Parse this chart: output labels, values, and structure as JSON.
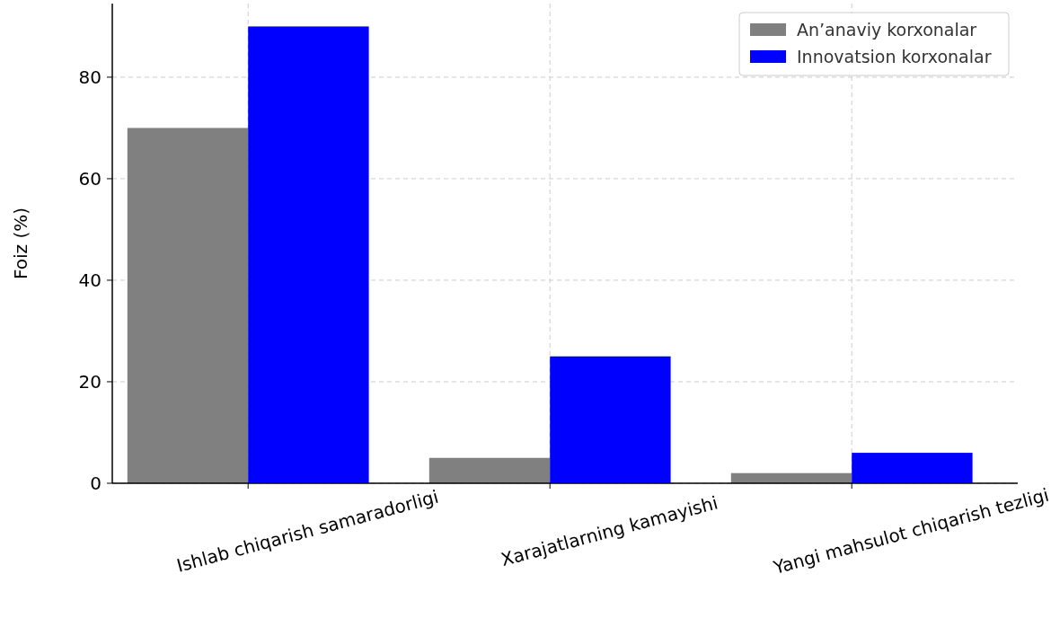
{
  "chart_data": {
    "type": "bar",
    "ylabel": "Foiz (%)",
    "categories": [
      "Ishlab chiqarish samaradorligi",
      "Xarajatlarning kamayishi",
      "Yangi mahsulot chiqarish tezligi"
    ],
    "series": [
      {
        "name": "An’anaviy korxonalar",
        "color": "#808080",
        "values": [
          70,
          5,
          2
        ]
      },
      {
        "name": "Innovatsion korxonalar",
        "color": "#0000ff",
        "values": [
          90,
          25,
          6
        ]
      }
    ],
    "ylim": [
      0,
      94.5
    ],
    "yticks": [
      0,
      20,
      40,
      60,
      80
    ],
    "grid": true,
    "legend": "top right"
  }
}
